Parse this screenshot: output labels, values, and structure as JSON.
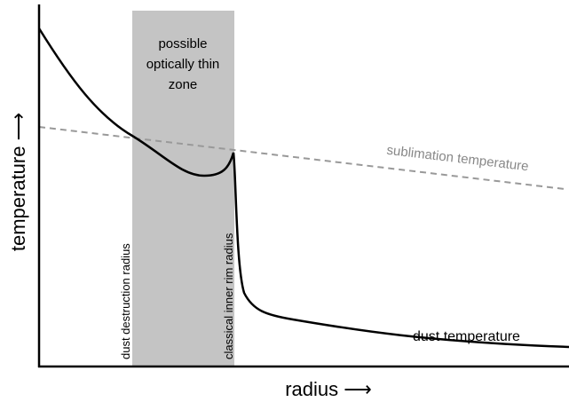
{
  "zone_label": [
    "possible",
    "optically thin",
    "zone"
  ],
  "sublimation_label": "sublimation temperature",
  "dust_label": "dust temperature",
  "destruction_label": "dust destruction radius",
  "rim_label": "classical inner rim radius",
  "y_axis_label": "temperature ⟶",
  "x_axis_label": "radius ⟶"
}
